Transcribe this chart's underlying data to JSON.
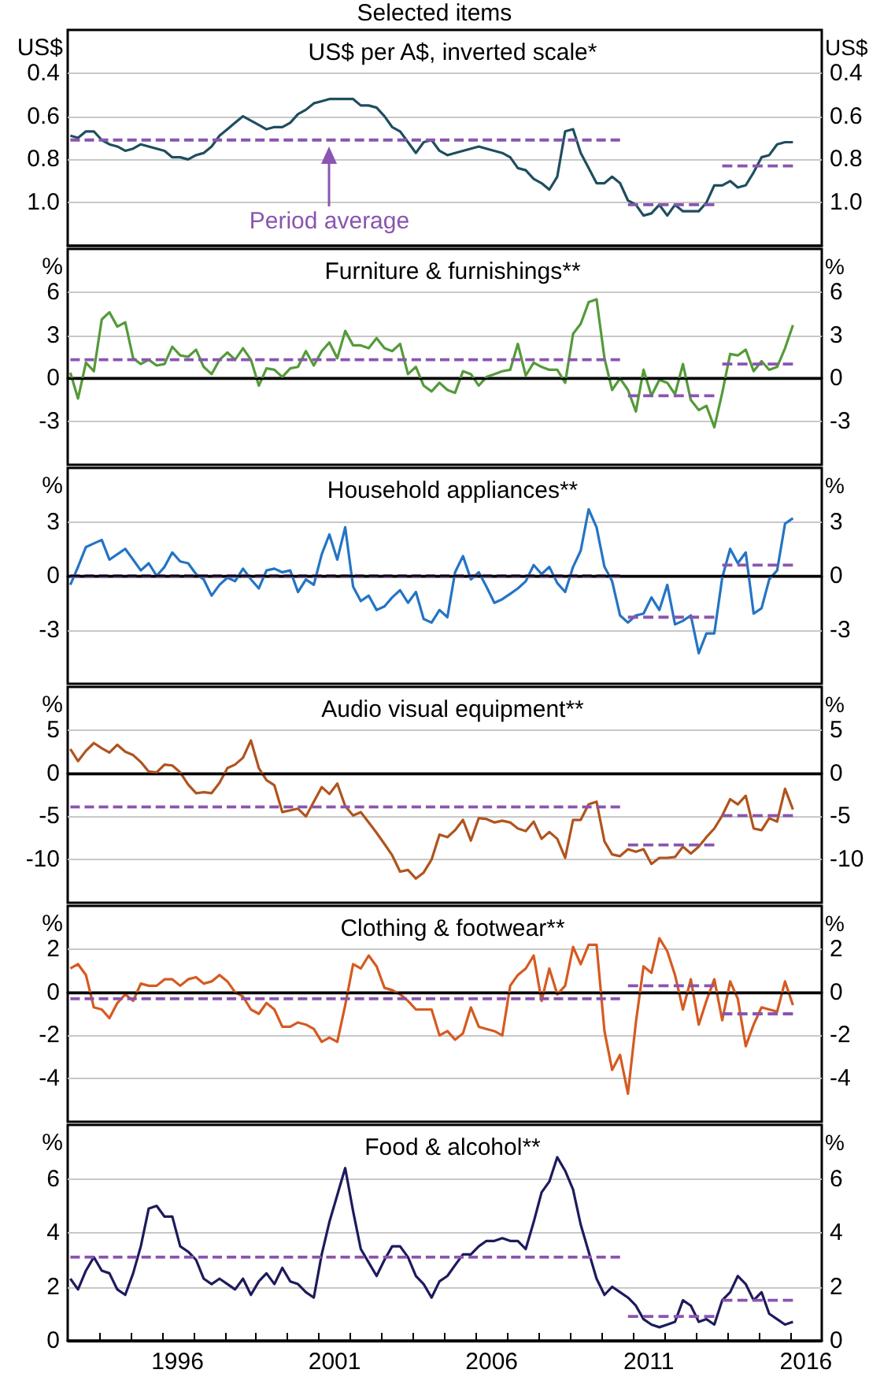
{
  "chart_data": [
    {
      "type": "line",
      "title": "Selected items",
      "subtitle": "US$ per A$, inverted scale*",
      "ylabel": "US$",
      "y2label": "US$",
      "ylim": [
        1.2,
        0.2
      ],
      "yticks": [
        0.4,
        0.6,
        0.8,
        {
          "value": 1.0,
          "label": "1.0"
        }
      ],
      "y2lim": [
        1.2,
        0.2
      ],
      "y2ticks": [
        0.4,
        0.6,
        0.8,
        {
          "value": 1.0,
          "label": "1.0"
        }
      ],
      "xlim": [
        "1993",
        "2017"
      ],
      "grid": "y",
      "tick_labels": "y",
      "x": [
        "1993-02",
        "1993-05",
        "1993-08",
        "1993-11",
        "1994-02",
        "1994-05",
        "1994-08",
        "1994-11",
        "1995-02",
        "1995-05",
        "1995-08",
        "1995-11",
        "1996-02",
        "1996-05",
        "1996-08",
        "1996-11",
        "1997-02",
        "1997-05",
        "1997-08",
        "1997-11",
        "1998-02",
        "1998-05",
        "1998-08",
        "1998-11",
        "1999-02",
        "1999-05",
        "1999-08",
        "1999-11",
        "2000-02",
        "2000-05",
        "2000-08",
        "2000-11",
        "2001-02",
        "2001-05",
        "2001-08",
        "2001-11",
        "2002-02",
        "2002-05",
        "2002-08",
        "2002-11",
        "2003-02",
        "2003-05",
        "2003-08",
        "2003-11",
        "2004-02",
        "2004-05",
        "2004-08",
        "2004-11",
        "2005-02",
        "2005-05",
        "2005-08",
        "2005-11",
        "2006-02",
        "2006-05",
        "2006-08",
        "2006-11",
        "2007-02",
        "2007-05",
        "2007-08",
        "2007-11",
        "2008-02",
        "2008-05",
        "2008-08",
        "2008-11",
        "2009-02",
        "2009-05",
        "2009-08",
        "2009-11",
        "2010-02",
        "2010-05",
        "2010-08",
        "2010-11",
        "2011-02",
        "2011-05",
        "2011-08",
        "2011-11",
        "2012-02",
        "2012-05",
        "2012-08",
        "2012-11",
        "2013-02",
        "2013-05",
        "2013-08",
        "2013-11",
        "2014-02",
        "2014-05",
        "2014-08",
        "2014-11",
        "2015-02",
        "2015-05",
        "2015-08",
        "2015-11",
        "2016-02"
      ],
      "series": [
        {
          "color": "#1f4e5f",
          "values": [
            0.69,
            0.7,
            0.67,
            0.67,
            0.71,
            0.73,
            0.74,
            0.76,
            0.75,
            0.73,
            0.74,
            0.75,
            0.76,
            0.79,
            0.79,
            0.8,
            0.78,
            0.77,
            0.74,
            0.69,
            0.66,
            0.63,
            0.6,
            0.62,
            0.64,
            0.66,
            0.65,
            0.65,
            0.63,
            0.59,
            0.57,
            0.54,
            0.53,
            0.52,
            0.52,
            0.52,
            0.52,
            0.55,
            0.55,
            0.56,
            0.6,
            0.65,
            0.67,
            0.72,
            0.77,
            0.72,
            0.71,
            0.76,
            0.78,
            0.77,
            0.76,
            0.75,
            0.74,
            0.75,
            0.76,
            0.77,
            0.79,
            0.84,
            0.85,
            0.89,
            0.91,
            0.94,
            0.88,
            0.67,
            0.66,
            0.77,
            0.84,
            0.91,
            0.91,
            0.88,
            0.91,
            0.99,
            1.01,
            1.06,
            1.05,
            1.01,
            1.06,
            1.01,
            1.04,
            1.04,
            1.04,
            1.0,
            0.92,
            0.92,
            0.9,
            0.93,
            0.92,
            0.86,
            0.79,
            0.78,
            0.73,
            0.72,
            0.72
          ]
        },
        {
          "color": "#8a55b0",
          "line_style": "dashed",
          "x": [
            "1993-02",
            "2010-08"
          ],
          "values": [
            0.71,
            0.71
          ]
        },
        {
          "color": "#8a55b0",
          "line_style": "dashed",
          "x": [
            "2010-11",
            "2013-08"
          ],
          "values": [
            1.01,
            1.01
          ]
        },
        {
          "color": "#8a55b0",
          "line_style": "dashed",
          "x": [
            "2013-11",
            "2016-02"
          ],
          "values": [
            0.83,
            0.83
          ]
        }
      ],
      "annotations": [
        {
          "text": "Period average",
          "x": "2001-05",
          "y": 0.71
        }
      ]
    },
    {
      "type": "line",
      "title": "Furniture & furnishings**",
      "ylabel": "%",
      "y2label": "%",
      "ylim": [
        -6,
        9
      ],
      "yticks": [
        -3,
        0,
        3,
        6
      ],
      "y2lim": [
        -6,
        9
      ],
      "y2ticks": [
        -3,
        0,
        3,
        6
      ],
      "xlim": [
        "1993",
        "2017"
      ],
      "grid": "y",
      "tick_labels": "y",
      "x": [
        "1993-02",
        "1993-05",
        "1993-08",
        "1993-11",
        "1994-02",
        "1994-05",
        "1994-08",
        "1994-11",
        "1995-02",
        "1995-05",
        "1995-08",
        "1995-11",
        "1996-02",
        "1996-05",
        "1996-08",
        "1996-11",
        "1997-02",
        "1997-05",
        "1997-08",
        "1997-11",
        "1998-02",
        "1998-05",
        "1998-08",
        "1998-11",
        "1999-02",
        "1999-05",
        "1999-08",
        "1999-11",
        "2000-02",
        "2000-05",
        "2000-08",
        "2000-11",
        "2001-02",
        "2001-05",
        "2001-08",
        "2001-11",
        "2002-02",
        "2002-05",
        "2002-08",
        "2002-11",
        "2003-02",
        "2003-05",
        "2003-08",
        "2003-11",
        "2004-02",
        "2004-05",
        "2004-08",
        "2004-11",
        "2005-02",
        "2005-05",
        "2005-08",
        "2005-11",
        "2006-02",
        "2006-05",
        "2006-08",
        "2006-11",
        "2007-02",
        "2007-05",
        "2007-08",
        "2007-11",
        "2008-02",
        "2008-05",
        "2008-08",
        "2008-11",
        "2009-02",
        "2009-05",
        "2009-08",
        "2009-11",
        "2010-02",
        "2010-05",
        "2010-08",
        "2010-11",
        "2011-02",
        "2011-05",
        "2011-08",
        "2011-11",
        "2012-02",
        "2012-05",
        "2012-08",
        "2012-11",
        "2013-02",
        "2013-05",
        "2013-08",
        "2013-11",
        "2014-02",
        "2014-05",
        "2014-08",
        "2014-11",
        "2015-02",
        "2015-05",
        "2015-08",
        "2015-11",
        "2016-02"
      ],
      "series": [
        {
          "color": "#559a3a",
          "values": [
            0.4,
            -1.4,
            1.1,
            0.5,
            4.1,
            4.6,
            3.6,
            3.9,
            1.4,
            1.0,
            1.3,
            0.9,
            1.0,
            2.2,
            1.6,
            1.5,
            2.0,
            0.8,
            0.3,
            1.3,
            1.8,
            1.3,
            2.1,
            1.3,
            -0.5,
            0.7,
            0.6,
            0.1,
            0.7,
            0.8,
            1.9,
            0.9,
            1.9,
            2.5,
            1.4,
            3.3,
            2.3,
            2.3,
            2.1,
            2.8,
            2.1,
            1.9,
            2.4,
            0.3,
            0.8,
            -0.5,
            -0.9,
            -0.3,
            -0.8,
            -1.0,
            0.5,
            0.3,
            -0.5,
            0.1,
            0.3,
            0.5,
            0.6,
            2.4,
            0.2,
            1.1,
            0.8,
            0.6,
            0.6,
            -0.3,
            3.1,
            3.8,
            5.3,
            5.5,
            1.4,
            -0.8,
            0.0,
            -0.8,
            -2.3,
            0.6,
            -1.2,
            -0.1,
            -0.3,
            -1.1,
            1.0,
            -1.5,
            -2.2,
            -1.9,
            -3.4,
            -1.0,
            1.7,
            1.6,
            2.0,
            0.5,
            1.2,
            0.6,
            0.8,
            2.1,
            3.7
          ]
        },
        {
          "color": "#8a55b0",
          "line_style": "dashed",
          "x": [
            "1993-02",
            "2010-08"
          ],
          "values": [
            1.3,
            1.3
          ]
        },
        {
          "color": "#8a55b0",
          "line_style": "dashed",
          "x": [
            "2010-11",
            "2013-08"
          ],
          "values": [
            -1.2,
            -1.2
          ]
        },
        {
          "color": "#8a55b0",
          "line_style": "dashed",
          "x": [
            "2013-11",
            "2016-02"
          ],
          "values": [
            1.0,
            1.0
          ]
        }
      ],
      "ref_lines": [
        {
          "axis": "y",
          "value": 0,
          "color": "#000000"
        }
      ]
    },
    {
      "type": "line",
      "title": "Household appliances**",
      "ylabel": "%",
      "y2label": "%",
      "ylim": [
        -6,
        6
      ],
      "yticks": [
        -3,
        0,
        3
      ],
      "y2lim": [
        -6,
        6
      ],
      "y2ticks": [
        -3,
        0,
        3
      ],
      "xlim": [
        "1993",
        "2017"
      ],
      "grid": "y",
      "tick_labels": "y",
      "x": [
        "1993-02",
        "1993-05",
        "1993-08",
        "1993-11",
        "1994-02",
        "1994-05",
        "1994-08",
        "1994-11",
        "1995-02",
        "1995-05",
        "1995-08",
        "1995-11",
        "1996-02",
        "1996-05",
        "1996-08",
        "1996-11",
        "1997-02",
        "1997-05",
        "1997-08",
        "1997-11",
        "1998-02",
        "1998-05",
        "1998-08",
        "1998-11",
        "1999-02",
        "1999-05",
        "1999-08",
        "1999-11",
        "2000-02",
        "2000-05",
        "2000-08",
        "2000-11",
        "2001-02",
        "2001-05",
        "2001-08",
        "2001-11",
        "2002-02",
        "2002-05",
        "2002-08",
        "2002-11",
        "2003-02",
        "2003-05",
        "2003-08",
        "2003-11",
        "2004-02",
        "2004-05",
        "2004-08",
        "2004-11",
        "2005-02",
        "2005-05",
        "2005-08",
        "2005-11",
        "2006-02",
        "2006-05",
        "2006-08",
        "2006-11",
        "2007-02",
        "2007-05",
        "2007-08",
        "2007-11",
        "2008-02",
        "2008-05",
        "2008-08",
        "2008-11",
        "2009-02",
        "2009-05",
        "2009-08",
        "2009-11",
        "2010-02",
        "2010-05",
        "2010-08",
        "2010-11",
        "2011-02",
        "2011-05",
        "2011-08",
        "2011-11",
        "2012-02",
        "2012-05",
        "2012-08",
        "2012-11",
        "2013-02",
        "2013-05",
        "2013-08",
        "2013-11",
        "2014-02",
        "2014-05",
        "2014-08",
        "2014-11",
        "2015-02",
        "2015-05",
        "2015-08",
        "2015-11",
        "2016-02"
      ],
      "series": [
        {
          "color": "#2474c4",
          "values": [
            -0.5,
            0.5,
            1.6,
            1.8,
            2.0,
            0.9,
            1.2,
            1.5,
            0.9,
            0.3,
            0.7,
            0.0,
            0.5,
            1.3,
            0.8,
            0.7,
            0.1,
            -0.2,
            -1.1,
            -0.5,
            -0.1,
            -0.3,
            0.4,
            -0.2,
            -0.7,
            0.3,
            0.4,
            0.2,
            0.3,
            -0.9,
            -0.2,
            -0.5,
            1.2,
            2.3,
            0.9,
            2.7,
            -0.6,
            -1.4,
            -1.1,
            -1.9,
            -1.7,
            -1.2,
            -0.8,
            -1.5,
            -0.9,
            -2.4,
            -2.6,
            -1.9,
            -2.3,
            0.2,
            1.1,
            -0.2,
            0.2,
            -0.6,
            -1.5,
            -1.3,
            -1.0,
            -0.7,
            -0.3,
            0.6,
            0.1,
            0.5,
            -0.4,
            -0.9,
            0.5,
            1.4,
            3.7,
            2.7,
            0.5,
            -0.3,
            -2.2,
            -2.6,
            -2.2,
            -2.1,
            -1.2,
            -1.9,
            -0.5,
            -2.7,
            -2.5,
            -2.2,
            -4.3,
            -3.2,
            -3.2,
            -0.1,
            1.5,
            0.7,
            1.3,
            -2.1,
            -1.8,
            -0.2,
            0.3,
            2.9,
            3.2
          ]
        },
        {
          "color": "#8a55b0",
          "line_style": "dashed",
          "x": [
            "1993-02",
            "2010-08"
          ],
          "values": [
            0.0,
            0.0
          ]
        },
        {
          "color": "#8a55b0",
          "line_style": "dashed",
          "x": [
            "2010-11",
            "2013-08"
          ],
          "values": [
            -2.3,
            -2.3
          ]
        },
        {
          "color": "#8a55b0",
          "line_style": "dashed",
          "x": [
            "2013-11",
            "2016-02"
          ],
          "values": [
            0.6,
            0.6
          ]
        }
      ],
      "ref_lines": [
        {
          "axis": "y",
          "value": 0,
          "color": "#000000"
        }
      ]
    },
    {
      "type": "line",
      "title": "Audio visual equipment**",
      "ylabel": "%",
      "y2label": "%",
      "ylim": [
        -15,
        10
      ],
      "yticks": [
        -10,
        -5,
        0,
        5
      ],
      "y2lim": [
        -15,
        10
      ],
      "y2ticks": [
        -10,
        -5,
        0,
        5
      ],
      "xlim": [
        "1993",
        "2017"
      ],
      "grid": "y",
      "tick_labels": "y",
      "x": [
        "1993-02",
        "1993-05",
        "1993-08",
        "1993-11",
        "1994-02",
        "1994-05",
        "1994-08",
        "1994-11",
        "1995-02",
        "1995-05",
        "1995-08",
        "1995-11",
        "1996-02",
        "1996-05",
        "1996-08",
        "1996-11",
        "1997-02",
        "1997-05",
        "1997-08",
        "1997-11",
        "1998-02",
        "1998-05",
        "1998-08",
        "1998-11",
        "1999-02",
        "1999-05",
        "1999-08",
        "1999-11",
        "2000-02",
        "2000-05",
        "2000-08",
        "2000-11",
        "2001-02",
        "2001-05",
        "2001-08",
        "2001-11",
        "2002-02",
        "2002-05",
        "2002-08",
        "2002-11",
        "2003-02",
        "2003-05",
        "2003-08",
        "2003-11",
        "2004-02",
        "2004-05",
        "2004-08",
        "2004-11",
        "2005-02",
        "2005-05",
        "2005-08",
        "2005-11",
        "2006-02",
        "2006-05",
        "2006-08",
        "2006-11",
        "2007-02",
        "2007-05",
        "2007-08",
        "2007-11",
        "2008-02",
        "2008-05",
        "2008-08",
        "2008-11",
        "2009-02",
        "2009-05",
        "2009-08",
        "2009-11",
        "2010-02",
        "2010-05",
        "2010-08",
        "2010-11",
        "2011-02",
        "2011-05",
        "2011-08",
        "2011-11",
        "2012-02",
        "2012-05",
        "2012-08",
        "2012-11",
        "2013-02",
        "2013-05",
        "2013-08",
        "2013-11",
        "2014-02",
        "2014-05",
        "2014-08",
        "2014-11",
        "2015-02",
        "2015-05",
        "2015-08",
        "2015-11",
        "2016-02"
      ],
      "series": [
        {
          "color": "#b0541e",
          "values": [
            2.8,
            1.4,
            2.6,
            3.5,
            2.9,
            2.4,
            3.3,
            2.5,
            2.1,
            1.3,
            0.2,
            0.1,
            1.0,
            0.9,
            0.1,
            -1.3,
            -2.3,
            -2.2,
            -2.3,
            -1.1,
            0.6,
            1.0,
            1.8,
            3.8,
            0.6,
            -0.8,
            -1.4,
            -4.5,
            -4.3,
            -4.1,
            -5.0,
            -3.3,
            -1.6,
            -2.4,
            -1.2,
            -3.8,
            -4.9,
            -4.5,
            -5.7,
            -6.9,
            -8.2,
            -9.5,
            -11.4,
            -11.2,
            -12.2,
            -11.5,
            -10.0,
            -7.1,
            -7.4,
            -6.6,
            -5.4,
            -7.8,
            -5.2,
            -5.3,
            -5.7,
            -5.5,
            -5.7,
            -6.4,
            -6.7,
            -5.6,
            -7.6,
            -6.8,
            -7.6,
            -9.8,
            -5.4,
            -5.4,
            -3.6,
            -3.3,
            -7.9,
            -9.4,
            -9.6,
            -8.8,
            -9.1,
            -8.8,
            -10.5,
            -9.8,
            -9.8,
            -9.7,
            -8.5,
            -9.3,
            -8.5,
            -7.4,
            -6.4,
            -4.9,
            -3.0,
            -3.6,
            -2.6,
            -6.4,
            -6.6,
            -5.2,
            -5.6,
            -1.8,
            -4.2
          ]
        },
        {
          "color": "#8a55b0",
          "line_style": "dashed",
          "x": [
            "1993-02",
            "2010-08"
          ],
          "values": [
            -3.9,
            -3.9
          ]
        },
        {
          "color": "#8a55b0",
          "line_style": "dashed",
          "x": [
            "2010-11",
            "2013-08"
          ],
          "values": [
            -8.3,
            -8.3
          ]
        },
        {
          "color": "#8a55b0",
          "line_style": "dashed",
          "x": [
            "2013-11",
            "2016-02"
          ],
          "values": [
            -4.9,
            -4.9
          ]
        }
      ],
      "ref_lines": [
        {
          "axis": "y",
          "value": 0,
          "color": "#000000"
        }
      ]
    },
    {
      "type": "line",
      "title": "Clothing & footwear**",
      "ylabel": "%",
      "y2label": "%",
      "ylim": [
        -6,
        4
      ],
      "yticks": [
        -4,
        -2,
        0,
        2
      ],
      "y2lim": [
        -6,
        4
      ],
      "y2ticks": [
        -4,
        -2,
        0,
        2
      ],
      "xlim": [
        "1993",
        "2017"
      ],
      "grid": "y",
      "tick_labels": "y",
      "x": [
        "1993-02",
        "1993-05",
        "1993-08",
        "1993-11",
        "1994-02",
        "1994-05",
        "1994-08",
        "1994-11",
        "1995-02",
        "1995-05",
        "1995-08",
        "1995-11",
        "1996-02",
        "1996-05",
        "1996-08",
        "1996-11",
        "1997-02",
        "1997-05",
        "1997-08",
        "1997-11",
        "1998-02",
        "1998-05",
        "1998-08",
        "1998-11",
        "1999-02",
        "1999-05",
        "1999-08",
        "1999-11",
        "2000-02",
        "2000-05",
        "2000-08",
        "2000-11",
        "2001-02",
        "2001-05",
        "2001-08",
        "2001-11",
        "2002-02",
        "2002-05",
        "2002-08",
        "2002-11",
        "2003-02",
        "2003-05",
        "2003-08",
        "2003-11",
        "2004-02",
        "2004-05",
        "2004-08",
        "2004-11",
        "2005-02",
        "2005-05",
        "2005-08",
        "2005-11",
        "2006-02",
        "2006-05",
        "2006-08",
        "2006-11",
        "2007-02",
        "2007-05",
        "2007-08",
        "2007-11",
        "2008-02",
        "2008-05",
        "2008-08",
        "2008-11",
        "2009-02",
        "2009-05",
        "2009-08",
        "2009-11",
        "2010-02",
        "2010-05",
        "2010-08",
        "2010-11",
        "2011-02",
        "2011-05",
        "2011-08",
        "2011-11",
        "2012-02",
        "2012-05",
        "2012-08",
        "2012-11",
        "2013-02",
        "2013-05",
        "2013-08",
        "2013-11",
        "2014-02",
        "2014-05",
        "2014-08",
        "2014-11",
        "2015-02",
        "2015-05",
        "2015-08",
        "2015-11",
        "2016-02"
      ],
      "series": [
        {
          "color": "#d65a20",
          "values": [
            1.1,
            1.3,
            0.8,
            -0.7,
            -0.8,
            -1.2,
            -0.5,
            -0.1,
            -0.4,
            0.4,
            0.3,
            0.3,
            0.6,
            0.6,
            0.3,
            0.6,
            0.7,
            0.4,
            0.5,
            0.8,
            0.5,
            0.0,
            -0.2,
            -0.8,
            -1.0,
            -0.5,
            -0.8,
            -1.6,
            -1.6,
            -1.4,
            -1.5,
            -1.7,
            -2.3,
            -2.1,
            -2.3,
            -0.6,
            1.3,
            1.1,
            1.7,
            1.2,
            0.2,
            0.1,
            -0.1,
            -0.4,
            -0.8,
            -0.8,
            -0.8,
            -2.0,
            -1.8,
            -2.2,
            -1.9,
            -0.7,
            -1.6,
            -1.7,
            -1.8,
            -2.0,
            0.3,
            0.8,
            1.1,
            1.7,
            -0.4,
            1.1,
            -0.1,
            0.3,
            2.1,
            1.3,
            2.2,
            2.2,
            -1.8,
            -3.6,
            -2.9,
            -4.7,
            -1.4,
            1.2,
            0.9,
            2.5,
            1.9,
            0.8,
            -0.8,
            0.6,
            -1.5,
            -0.4,
            0.6,
            -1.3,
            0.5,
            -0.3,
            -2.5,
            -1.5,
            -0.7,
            -0.8,
            -0.9,
            0.5,
            -0.6
          ]
        },
        {
          "color": "#8a55b0",
          "line_style": "dashed",
          "x": [
            "1993-02",
            "2010-08"
          ],
          "values": [
            -0.3,
            -0.3
          ]
        },
        {
          "color": "#8a55b0",
          "line_style": "dashed",
          "x": [
            "2010-11",
            "2013-08"
          ],
          "values": [
            0.3,
            0.3
          ]
        },
        {
          "color": "#8a55b0",
          "line_style": "dashed",
          "x": [
            "2013-11",
            "2016-02"
          ],
          "values": [
            -1.0,
            -1.0
          ]
        }
      ],
      "ref_lines": [
        {
          "axis": "y",
          "value": 0,
          "color": "#000000"
        }
      ]
    },
    {
      "type": "line",
      "title": "Food & alcohol**",
      "ylabel": "%",
      "y2label": "%",
      "ylim": [
        0,
        8
      ],
      "yticks": [
        0,
        2,
        4,
        6
      ],
      "y2lim": [
        0,
        8
      ],
      "y2ticks": [
        0,
        2,
        4,
        6
      ],
      "xlim": [
        "1993",
        "2017"
      ],
      "grid": "y",
      "xticks": [
        {
          "value": "1994",
          "label": null
        },
        {
          "value": "1995",
          "label": null
        },
        {
          "value": "1996",
          "label": null
        },
        {
          "value": "1996-07",
          "label": "1996"
        },
        {
          "value": "1997",
          "label": null
        },
        {
          "value": "1998",
          "label": null
        },
        {
          "value": "1999",
          "label": null
        },
        {
          "value": "2000",
          "label": null
        },
        {
          "value": "2001",
          "label": null
        },
        {
          "value": "2001-07",
          "label": "2001"
        },
        {
          "value": "2002",
          "label": null
        },
        {
          "value": "2003",
          "label": null
        },
        {
          "value": "2004",
          "label": null
        },
        {
          "value": "2005",
          "label": null
        },
        {
          "value": "2006",
          "label": null
        },
        {
          "value": "2006-07",
          "label": "2006"
        },
        {
          "value": "2007",
          "label": null
        },
        {
          "value": "2008",
          "label": null
        },
        {
          "value": "2009",
          "label": null
        },
        {
          "value": "2010",
          "label": null
        },
        {
          "value": "2011",
          "label": null
        },
        {
          "value": "2011-07",
          "label": "2011"
        },
        {
          "value": "2012",
          "label": null
        },
        {
          "value": "2013",
          "label": null
        },
        {
          "value": "2014",
          "label": null
        },
        {
          "value": "2015",
          "label": null
        },
        {
          "value": "2016",
          "label": null
        },
        {
          "value": "2016-07",
          "label": "2016"
        }
      ],
      "x": [
        "1993-02",
        "1993-05",
        "1993-08",
        "1993-11",
        "1994-02",
        "1994-05",
        "1994-08",
        "1994-11",
        "1995-02",
        "1995-05",
        "1995-08",
        "1995-11",
        "1996-02",
        "1996-05",
        "1996-08",
        "1996-11",
        "1997-02",
        "1997-05",
        "1997-08",
        "1997-11",
        "1998-02",
        "1998-05",
        "1998-08",
        "1998-11",
        "1999-02",
        "1999-05",
        "1999-08",
        "1999-11",
        "2000-02",
        "2000-05",
        "2000-08",
        "2000-11",
        "2001-02",
        "2001-05",
        "2001-08",
        "2001-11",
        "2002-02",
        "2002-05",
        "2002-08",
        "2002-11",
        "2003-02",
        "2003-05",
        "2003-08",
        "2003-11",
        "2004-02",
        "2004-05",
        "2004-08",
        "2004-11",
        "2005-02",
        "2005-05",
        "2005-08",
        "2005-11",
        "2006-02",
        "2006-05",
        "2006-08",
        "2006-11",
        "2007-02",
        "2007-05",
        "2007-08",
        "2007-11",
        "2008-02",
        "2008-05",
        "2008-08",
        "2008-11",
        "2009-02",
        "2009-05",
        "2009-08",
        "2009-11",
        "2010-02",
        "2010-05",
        "2010-08",
        "2010-11",
        "2011-02",
        "2011-05",
        "2011-08",
        "2011-11",
        "2012-02",
        "2012-05",
        "2012-08",
        "2012-11",
        "2013-02",
        "2013-05",
        "2013-08",
        "2013-11",
        "2014-02",
        "2014-05",
        "2014-08",
        "2014-11",
        "2015-02",
        "2015-05",
        "2015-08",
        "2015-11",
        "2016-02"
      ],
      "series": [
        {
          "color": "#1d1b5c",
          "values": [
            2.3,
            1.9,
            2.6,
            3.1,
            2.6,
            2.5,
            1.9,
            1.7,
            2.5,
            3.5,
            4.9,
            5.0,
            4.6,
            4.6,
            3.5,
            3.3,
            3.0,
            2.3,
            2.1,
            2.3,
            2.1,
            1.9,
            2.3,
            1.7,
            2.2,
            2.5,
            2.1,
            2.7,
            2.2,
            2.1,
            1.8,
            1.6,
            3.2,
            4.4,
            5.4,
            6.4,
            4.8,
            3.4,
            2.9,
            2.4,
            3.0,
            3.5,
            3.5,
            3.1,
            2.4,
            2.1,
            1.6,
            2.2,
            2.4,
            2.8,
            3.2,
            3.2,
            3.5,
            3.7,
            3.7,
            3.8,
            3.7,
            3.7,
            3.4,
            4.4,
            5.5,
            5.9,
            6.8,
            6.3,
            5.6,
            4.3,
            3.3,
            2.3,
            1.7,
            2.0,
            1.8,
            1.6,
            1.3,
            0.8,
            0.6,
            0.5,
            0.6,
            0.7,
            1.5,
            1.3,
            0.7,
            0.8,
            0.6,
            1.5,
            1.8,
            2.4,
            2.1,
            1.5,
            1.8,
            1.0,
            0.8,
            0.6,
            0.7
          ]
        },
        {
          "color": "#8a55b0",
          "line_style": "dashed",
          "x": [
            "1993-02",
            "2010-08"
          ],
          "values": [
            3.1,
            3.1
          ]
        },
        {
          "color": "#8a55b0",
          "line_style": "dashed",
          "x": [
            "2010-11",
            "2013-08"
          ],
          "values": [
            0.9,
            0.9
          ]
        },
        {
          "color": "#8a55b0",
          "line_style": "dashed",
          "x": [
            "2013-11",
            "2016-02"
          ],
          "values": [
            1.5,
            1.5
          ]
        }
      ],
      "ref_lines": [
        {
          "axis": "y",
          "value": 0,
          "color": "#000000"
        }
      ]
    }
  ]
}
